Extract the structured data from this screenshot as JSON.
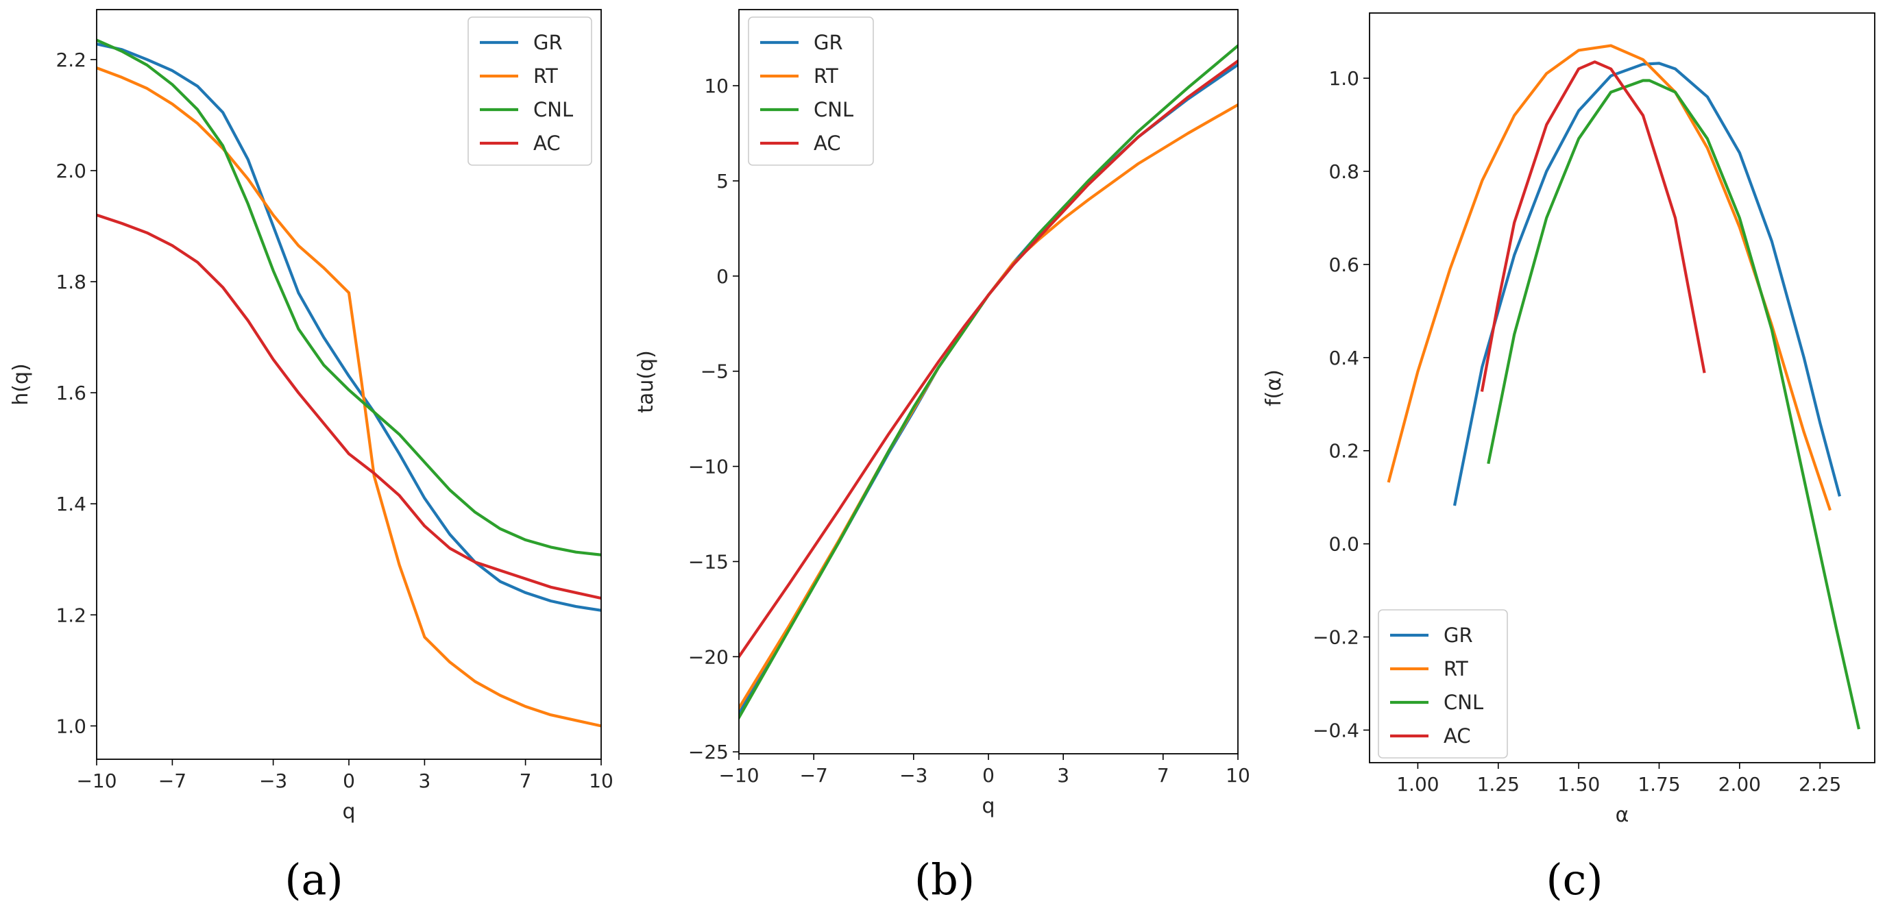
{
  "colors": {
    "GR": "#1f77b4",
    "RT": "#ff7f0e",
    "CNL": "#2ca02c",
    "AC": "#d62728"
  },
  "chart_data": [
    {
      "type": "line",
      "panel_label": "(a)",
      "xlabel": "q",
      "ylabel": "h(q)",
      "xlim": [
        -10,
        10
      ],
      "ylim": [
        0.94,
        2.29
      ],
      "xticks": [
        -10,
        -7,
        -3,
        0,
        3,
        7,
        10
      ],
      "xtick_labels": [
        "−10",
        "−7",
        "−3",
        "0",
        "3",
        "7",
        "10"
      ],
      "yticks": [
        1.0,
        1.2,
        1.4,
        1.6,
        1.8,
        2.0,
        2.2
      ],
      "ytick_labels": [
        "1.0",
        "1.2",
        "1.4",
        "1.6",
        "1.8",
        "2.0",
        "2.2"
      ],
      "legend_position": "top-right",
      "series": [
        {
          "name": "GR",
          "x": [
            -10,
            -9,
            -8,
            -7,
            -6,
            -5,
            -4,
            -3,
            -2,
            -1,
            0,
            1,
            2,
            3,
            4,
            5,
            6,
            7,
            8,
            9,
            10
          ],
          "values": [
            2.228,
            2.218,
            2.2,
            2.18,
            2.152,
            2.105,
            2.02,
            1.9,
            1.78,
            1.7,
            1.63,
            1.565,
            1.49,
            1.41,
            1.345,
            1.295,
            1.26,
            1.24,
            1.225,
            1.215,
            1.208
          ]
        },
        {
          "name": "RT",
          "x": [
            -10,
            -9,
            -8,
            -7,
            -6,
            -5,
            -4,
            -3,
            -2,
            -1,
            0,
            0.5,
            1,
            1.5,
            2,
            3,
            4,
            5,
            6,
            7,
            8,
            9,
            10
          ],
          "values": [
            2.185,
            2.168,
            2.148,
            2.12,
            2.085,
            2.04,
            1.985,
            1.92,
            1.865,
            1.825,
            1.78,
            1.62,
            1.45,
            1.37,
            1.29,
            1.16,
            1.115,
            1.08,
            1.055,
            1.035,
            1.02,
            1.01,
            1.0
          ]
        },
        {
          "name": "CNL",
          "x": [
            -10,
            -9,
            -8,
            -7,
            -6,
            -5,
            -4,
            -3,
            -2,
            -1,
            0,
            1,
            2,
            3,
            4,
            5,
            6,
            7,
            8,
            9,
            10
          ],
          "values": [
            2.235,
            2.215,
            2.19,
            2.155,
            2.11,
            2.045,
            1.94,
            1.82,
            1.715,
            1.65,
            1.605,
            1.565,
            1.525,
            1.475,
            1.425,
            1.385,
            1.355,
            1.335,
            1.322,
            1.313,
            1.308
          ]
        },
        {
          "name": "AC",
          "x": [
            -10,
            -9,
            -8,
            -7,
            -6,
            -5,
            -4,
            -3,
            -2,
            -1,
            0,
            1,
            2,
            3,
            4,
            5,
            6,
            7,
            8,
            9,
            10
          ],
          "values": [
            1.92,
            1.905,
            1.888,
            1.865,
            1.835,
            1.79,
            1.73,
            1.66,
            1.6,
            1.545,
            1.49,
            1.455,
            1.415,
            1.36,
            1.32,
            1.295,
            1.28,
            1.265,
            1.25,
            1.24,
            1.23
          ]
        }
      ]
    },
    {
      "type": "line",
      "panel_label": "(b)",
      "xlabel": "q",
      "ylabel": "tau(q)",
      "xlim": [
        -10,
        10
      ],
      "ylim": [
        -25.1,
        14.0
      ],
      "xticks": [
        -10,
        -7,
        -3,
        0,
        3,
        7,
        10
      ],
      "xtick_labels": [
        "−10",
        "−7",
        "−3",
        "0",
        "3",
        "7",
        "10"
      ],
      "yticks": [
        -25,
        -20,
        -15,
        -10,
        -5,
        0,
        5,
        10
      ],
      "ytick_labels": [
        "−25",
        "−20",
        "−15",
        "−10",
        "−5",
        "0",
        "5",
        "10"
      ],
      "legend_position": "top-left",
      "series": [
        {
          "name": "GR",
          "x": [
            -10,
            -8,
            -6,
            -4,
            -3,
            -2,
            -1,
            0,
            1,
            2,
            3,
            4,
            6,
            8,
            10
          ],
          "values": [
            -23.0,
            -18.5,
            -14.0,
            -9.3,
            -7.1,
            -4.8,
            -2.9,
            -1.0,
            0.7,
            2.2,
            3.6,
            4.9,
            7.3,
            9.3,
            11.1
          ]
        },
        {
          "name": "RT",
          "x": [
            -10,
            -8,
            -6,
            -4,
            -3,
            -2,
            -1,
            0,
            1,
            2,
            3,
            4,
            6,
            8,
            10
          ],
          "values": [
            -22.7,
            -18.4,
            -13.9,
            -9.2,
            -7.0,
            -4.8,
            -2.9,
            -1.0,
            0.7,
            1.9,
            3.0,
            4.0,
            5.9,
            7.5,
            9.0
          ]
        },
        {
          "name": "CNL",
          "x": [
            -10,
            -8,
            -6,
            -4,
            -3,
            -2,
            -1,
            0,
            1,
            2,
            3,
            4,
            6,
            8,
            10
          ],
          "values": [
            -23.2,
            -18.6,
            -14.0,
            -9.2,
            -6.9,
            -4.8,
            -2.9,
            -1.0,
            0.6,
            2.2,
            3.6,
            5.0,
            7.6,
            9.9,
            12.1
          ]
        },
        {
          "name": "AC",
          "x": [
            -10,
            -8,
            -6,
            -4,
            -3,
            -2,
            -1,
            0,
            1,
            2,
            3,
            4,
            6,
            8,
            10
          ],
          "values": [
            -20.0,
            -16.2,
            -12.3,
            -8.3,
            -6.4,
            -4.5,
            -2.7,
            -1.0,
            0.6,
            2.0,
            3.4,
            4.8,
            7.3,
            9.4,
            11.3
          ]
        }
      ]
    },
    {
      "type": "line",
      "panel_label": "(c)",
      "xlabel": "α",
      "ylabel": "f(α)",
      "xlim": [
        0.85,
        2.42
      ],
      "ylim": [
        -0.47,
        1.14
      ],
      "xticks": [
        1.0,
        1.25,
        1.5,
        1.75,
        2.0,
        2.25
      ],
      "xtick_labels": [
        "1.00",
        "1.25",
        "1.50",
        "1.75",
        "2.00",
        "2.25"
      ],
      "yticks": [
        -0.4,
        -0.2,
        0.0,
        0.2,
        0.4,
        0.6,
        0.8,
        1.0
      ],
      "ytick_labels": [
        "−0.4",
        "−0.2",
        "0.0",
        "0.2",
        "0.4",
        "0.6",
        "0.8",
        "1.0"
      ],
      "legend_position": "bottom-left",
      "series": [
        {
          "name": "GR",
          "x": [
            1.115,
            1.2,
            1.3,
            1.4,
            1.5,
            1.6,
            1.7,
            1.75,
            1.8,
            1.9,
            2.0,
            2.1,
            2.2,
            2.25,
            2.31
          ],
          "values": [
            0.085,
            0.38,
            0.62,
            0.8,
            0.93,
            1.005,
            1.03,
            1.032,
            1.02,
            0.96,
            0.84,
            0.65,
            0.4,
            0.26,
            0.105
          ]
        },
        {
          "name": "RT",
          "x": [
            0.91,
            1.0,
            1.1,
            1.2,
            1.3,
            1.4,
            1.5,
            1.6,
            1.7,
            1.8,
            1.9,
            2.0,
            2.1,
            2.2,
            2.28
          ],
          "values": [
            0.135,
            0.37,
            0.59,
            0.78,
            0.92,
            1.01,
            1.06,
            1.07,
            1.04,
            0.97,
            0.85,
            0.68,
            0.47,
            0.24,
            0.075
          ]
        },
        {
          "name": "CNL",
          "x": [
            1.22,
            1.3,
            1.4,
            1.5,
            1.6,
            1.7,
            1.72,
            1.8,
            1.9,
            2.0,
            2.1,
            2.2,
            2.3,
            2.37
          ],
          "values": [
            0.175,
            0.45,
            0.7,
            0.87,
            0.97,
            0.995,
            0.995,
            0.97,
            0.87,
            0.7,
            0.46,
            0.14,
            -0.18,
            -0.395
          ]
        },
        {
          "name": "AC",
          "x": [
            1.2,
            1.25,
            1.3,
            1.4,
            1.5,
            1.55,
            1.6,
            1.7,
            1.8,
            1.89
          ],
          "values": [
            0.33,
            0.52,
            0.69,
            0.9,
            1.02,
            1.035,
            1.02,
            0.92,
            0.7,
            0.37
          ]
        }
      ]
    }
  ]
}
